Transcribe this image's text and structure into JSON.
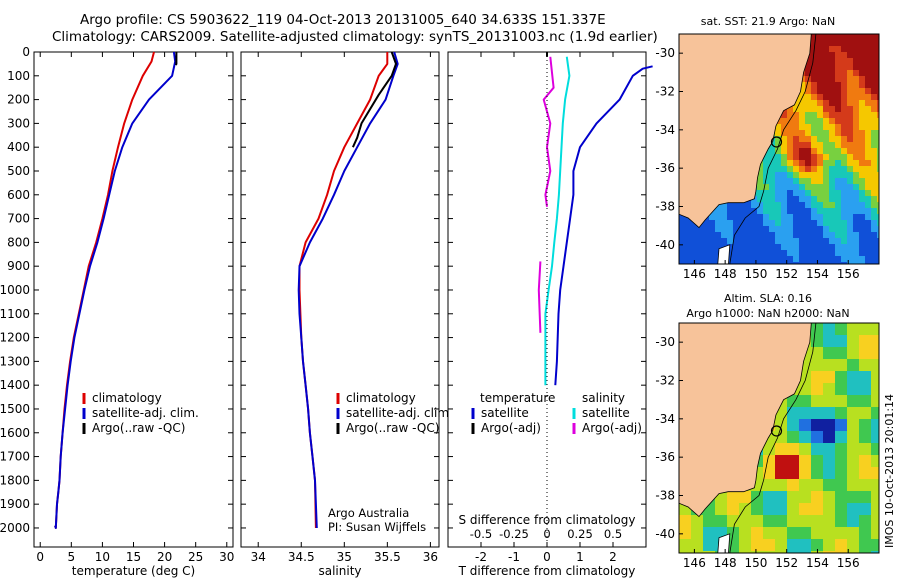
{
  "header": {
    "line1": "Argo profile: CS 5903622_119 04-Oct-2013 20131005_640 34.633S 151.337E",
    "line2": "Climatology: CARS2009. Satellite-adjusted climatology: synTS_20131003.nc (1.9d earlier)"
  },
  "colors": {
    "climatology": "#dd0000",
    "satellite": "#0000cc",
    "argo": "#000000",
    "cyan": "#00dddd",
    "magenta": "#dd00dd",
    "land": "#f7c39a"
  },
  "chart_data": [
    {
      "type": "line",
      "id": "temperature",
      "xlabel": "temperature (deg C)",
      "xticks": [
        "0",
        "5",
        "10",
        "15",
        "20",
        "25",
        "30"
      ],
      "xlim": [
        -1,
        31
      ],
      "ylim": [
        0,
        2080
      ],
      "yticks": [
        "0",
        "100",
        "200",
        "300",
        "400",
        "500",
        "600",
        "700",
        "800",
        "900",
        "1000",
        "1100",
        "1200",
        "1300",
        "1400",
        "1500",
        "1600",
        "1700",
        "1800",
        "1900",
        "2000"
      ],
      "legend": [
        "climatology",
        "satellite-adj. clim.",
        "Argo(..raw -QC)"
      ],
      "series": [
        {
          "name": "climatology",
          "color": "#dd0000",
          "x": [
            18.3,
            17.9,
            16.5,
            14.8,
            13.5,
            12.5,
            11.6,
            10.9,
            10.0,
            9.0,
            7.8,
            7.0,
            6.2,
            5.4,
            4.8,
            4.3,
            3.9,
            3.6,
            3.3,
            3.1,
            2.9,
            2.7,
            2.6,
            2.5,
            2.4
          ],
          "y": [
            0,
            40,
            100,
            200,
            300,
            400,
            500,
            600,
            700,
            800,
            900,
            1000,
            1100,
            1200,
            1300,
            1400,
            1500,
            1600,
            1700,
            1800,
            1850,
            1900,
            1950,
            2000,
            1990
          ]
        },
        {
          "name": "satellite-adj. clim.",
          "color": "#0000cc",
          "x": [
            21.5,
            21.7,
            21.2,
            17.5,
            14.8,
            13.2,
            12.0,
            11.1,
            10.2,
            9.2,
            8.0,
            7.1,
            6.3,
            5.5,
            4.9,
            4.4,
            4.0,
            3.6,
            3.3,
            3.1,
            2.9,
            2.7,
            2.6,
            2.5,
            2.4
          ],
          "y": [
            0,
            40,
            100,
            200,
            300,
            400,
            500,
            600,
            700,
            800,
            900,
            1000,
            1100,
            1200,
            1300,
            1400,
            1500,
            1600,
            1700,
            1800,
            1850,
            1900,
            1950,
            2000,
            1990
          ]
        },
        {
          "name": "Argo(..raw -QC)",
          "color": "#000000",
          "x": [
            21.9,
            21.9,
            21.8
          ],
          "y": [
            0,
            50,
            55
          ]
        }
      ]
    },
    {
      "type": "line",
      "id": "salinity",
      "xlabel": "salinity",
      "xticks": [
        "34",
        "34.5",
        "35",
        "35.5",
        "36"
      ],
      "xlim": [
        33.8,
        36.1
      ],
      "ylim": [
        0,
        2080
      ],
      "legend": [
        "climatology",
        "satellite-adj. clim.",
        "Argo(..raw -QC)"
      ],
      "annotation": [
        "Argo Australia",
        "PI: Susan Wijffels"
      ],
      "series": [
        {
          "name": "climatology",
          "color": "#dd0000",
          "x": [
            35.5,
            35.5,
            35.4,
            35.3,
            35.15,
            35.0,
            34.88,
            34.8,
            34.7,
            34.55,
            34.48,
            34.48,
            34.49,
            34.5,
            34.52,
            34.55,
            34.58,
            34.6,
            34.63,
            34.66,
            34.67
          ],
          "y": [
            0,
            50,
            100,
            200,
            300,
            400,
            500,
            600,
            700,
            800,
            900,
            1000,
            1100,
            1200,
            1300,
            1400,
            1500,
            1600,
            1700,
            1800,
            2000
          ]
        },
        {
          "name": "satellite-adj. clim.",
          "color": "#0000cc",
          "x": [
            35.58,
            35.62,
            35.57,
            35.48,
            35.3,
            35.15,
            35.0,
            34.88,
            34.75,
            34.6,
            34.48,
            34.47,
            34.48,
            34.5,
            34.52,
            34.55,
            34.58,
            34.6,
            34.63,
            34.66,
            34.68
          ],
          "y": [
            0,
            50,
            100,
            200,
            300,
            400,
            500,
            600,
            700,
            800,
            900,
            1000,
            1100,
            1200,
            1300,
            1400,
            1500,
            1600,
            1700,
            1800,
            2000
          ]
        },
        {
          "name": "Argo(..raw -QC)",
          "color": "#000000",
          "x": [
            35.55,
            35.6,
            35.55,
            35.4,
            35.2,
            35.15,
            35.1
          ],
          "y": [
            0,
            50,
            100,
            180,
            300,
            360,
            400
          ]
        }
      ]
    },
    {
      "type": "line",
      "id": "difference",
      "xlabel": "T difference from climatology",
      "xlabel_top": "S difference from climatology",
      "xticks": [
        "-2",
        "-1",
        "0",
        "1",
        "2"
      ],
      "xticks_top": [
        "-0.5",
        "-0.25",
        "0",
        "0.25",
        "0.5"
      ],
      "xlim": [
        -3,
        3
      ],
      "ylim": [
        0,
        2080
      ],
      "legend_temperature_title": "temperature",
      "legend_salinity_title": "salinity",
      "legend": [
        "satellite",
        "Argo(-adj)",
        "satellite",
        "Argo(-adj)"
      ],
      "series": [
        {
          "name": "temperature satellite",
          "color": "#0000cc",
          "x": [
            3.2,
            2.9,
            2.6,
            2.2,
            1.5,
            1.0,
            0.8,
            0.8,
            0.7,
            0.5,
            0.4,
            0.35,
            0.3,
            0.25
          ],
          "y": [
            60,
            70,
            100,
            200,
            300,
            400,
            500,
            600,
            700,
            900,
            1000,
            1100,
            1300,
            1400
          ]
        },
        {
          "name": "temperature Argo(-adj)",
          "color": "#000000",
          "x": [
            0.0,
            0.0
          ],
          "y": [
            0,
            20
          ]
        },
        {
          "name": "salinity satellite",
          "color": "#00dddd",
          "x": [
            0.6,
            0.68,
            0.55,
            0.48,
            0.44,
            0.4,
            0.36,
            0.3,
            0.22,
            0.15,
            0.05,
            -0.05,
            -0.05
          ],
          "y": [
            20,
            100,
            200,
            300,
            400,
            500,
            600,
            700,
            800,
            900,
            1000,
            1100,
            1400
          ]
        },
        {
          "name": "salinity Argo(-adj)",
          "color": "#dd00dd",
          "x": [
            0.1,
            0.2,
            -0.1,
            0.1,
            0.0,
            0.1,
            -0.05,
            0.0
          ],
          "y": [
            20,
            150,
            200,
            300,
            400,
            500,
            600,
            650
          ]
        },
        {
          "name": "salinity Argo(-adj) deep",
          "color": "#dd00dd",
          "x": [
            -0.2,
            -0.25,
            -0.2
          ],
          "y": [
            880,
            1000,
            1180
          ]
        }
      ]
    },
    {
      "type": "heatmap",
      "id": "sst-map",
      "title": "sat. SST: 21.9  Argo: NaN",
      "xticks": [
        "146",
        "148",
        "150",
        "152",
        "154",
        "156"
      ],
      "yticks": [
        "-30",
        "-32",
        "-34",
        "-36",
        "-38",
        "-40"
      ],
      "xlim": [
        145,
        158
      ],
      "ylim": [
        -41,
        -29
      ]
    },
    {
      "type": "heatmap",
      "id": "sla-map",
      "title_line1": "Altim. SLA: 0.16",
      "title_line2": "Argo h1000: NaN h2000: NaN",
      "xticks": [
        "146",
        "148",
        "150",
        "152",
        "154",
        "156"
      ],
      "yticks": [
        "-30",
        "-32",
        "-34",
        "-36",
        "-38",
        "-40"
      ],
      "xlim": [
        145,
        158
      ],
      "ylim": [
        -41,
        -29
      ]
    }
  ],
  "side_stamp": "IMOS 10-Oct-2013 20:01:14"
}
